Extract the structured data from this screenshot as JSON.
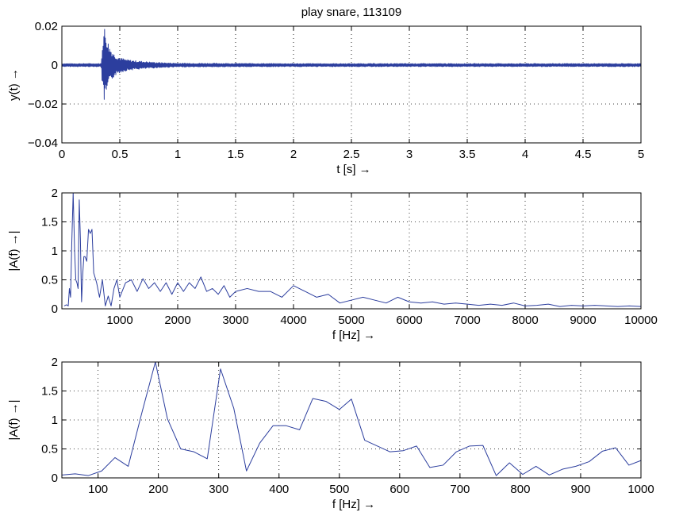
{
  "title": "play snare, 113109",
  "chart_data": [
    {
      "type": "line",
      "xlabel": "t [s] →",
      "ylabel": "y(t) →",
      "xlim": [
        0,
        5
      ],
      "ylim": [
        -0.04,
        0.02
      ],
      "xticks": [
        "0",
        "0.5",
        "1",
        "1.5",
        "2",
        "2.5",
        "3",
        "3.5",
        "4",
        "4.5",
        "5"
      ],
      "yticks": [
        "0.02",
        "0",
        "−0.02",
        "−0.04"
      ],
      "grid": true,
      "color": "#2c3e9e",
      "series": [
        {
          "x": [
            0,
            0.34,
            0.35,
            0.355,
            0.36,
            0.365,
            0.37,
            0.375,
            0.38,
            0.385,
            0.39,
            0.395,
            0.4,
            0.41,
            0.42,
            0.43,
            0.44,
            0.45,
            0.47,
            0.5,
            0.55,
            0.6,
            0.7,
            0.8,
            0.9,
            1.0,
            1.5,
            2,
            2.5,
            3,
            3.5,
            4,
            4.5,
            5
          ],
          "envelope": [
            0.0008,
            0.0008,
            0.012,
            0.016,
            0.018,
            0.019,
            0.02,
            0.018,
            0.017,
            0.016,
            0.015,
            0.013,
            0.012,
            0.01,
            0.009,
            0.008,
            0.007,
            0.006,
            0.005,
            0.004,
            0.003,
            0.0025,
            0.002,
            0.0015,
            0.0012,
            0.001,
            0.0009,
            0.0008,
            0.0008,
            0.0008,
            0.0008,
            0.0008,
            0.0008,
            0.0008
          ],
          "min_value": -0.024,
          "max_value": 0.02
        }
      ]
    },
    {
      "type": "line",
      "xlabel": "f [Hz] →",
      "ylabel": "|A(f) →|",
      "xlim": [
        0,
        10000
      ],
      "ylim": [
        0,
        2
      ],
      "xticks": [
        "1000",
        "2000",
        "3000",
        "4000",
        "5000",
        "6000",
        "7000",
        "8000",
        "9000",
        "10000"
      ],
      "yticks": [
        "2",
        "1.5",
        "1",
        "0.5",
        "0"
      ],
      "grid": true,
      "color": "#2c3e9e",
      "series": [
        {
          "x": [
            40,
            80,
            110,
            130,
            150,
            170,
            195,
            220,
            240,
            260,
            280,
            300,
            320,
            340,
            360,
            380,
            400,
            430,
            460,
            490,
            520,
            550,
            600,
            650,
            700,
            750,
            800,
            850,
            900,
            950,
            1000,
            1100,
            1200,
            1300,
            1400,
            1500,
            1600,
            1700,
            1800,
            1900,
            2000,
            2100,
            2200,
            2300,
            2400,
            2500,
            2600,
            2700,
            2800,
            2900,
            3000,
            3200,
            3400,
            3600,
            3800,
            4000,
            4200,
            4400,
            4600,
            4800,
            5000,
            5200,
            5400,
            5600,
            5800,
            6000,
            6200,
            6400,
            6600,
            6800,
            7000,
            7200,
            7400,
            7600,
            7800,
            8000,
            8200,
            8400,
            8600,
            8800,
            9000,
            9200,
            9400,
            9600,
            9800,
            10000
          ],
          "y": [
            0.05,
            0.07,
            0.05,
            0.35,
            0.2,
            1.1,
            2.0,
            1.0,
            0.5,
            0.45,
            0.35,
            1.88,
            1.2,
            0.12,
            0.6,
            0.9,
            0.9,
            0.82,
            1.37,
            1.3,
            1.37,
            0.62,
            0.45,
            0.2,
            0.5,
            0.05,
            0.22,
            0.05,
            0.35,
            0.5,
            0.2,
            0.45,
            0.5,
            0.3,
            0.52,
            0.35,
            0.45,
            0.3,
            0.45,
            0.25,
            0.45,
            0.3,
            0.45,
            0.35,
            0.55,
            0.3,
            0.35,
            0.25,
            0.4,
            0.2,
            0.3,
            0.35,
            0.3,
            0.3,
            0.2,
            0.4,
            0.3,
            0.2,
            0.25,
            0.1,
            0.15,
            0.2,
            0.15,
            0.1,
            0.2,
            0.12,
            0.1,
            0.12,
            0.08,
            0.1,
            0.08,
            0.06,
            0.08,
            0.06,
            0.1,
            0.05,
            0.06,
            0.08,
            0.04,
            0.06,
            0.05,
            0.06,
            0.05,
            0.04,
            0.05,
            0.04
          ]
        }
      ]
    },
    {
      "type": "line",
      "xlabel": "f [Hz] →",
      "ylabel": "|A(f) →|",
      "xlim": [
        40,
        1000
      ],
      "ylim": [
        0,
        2
      ],
      "xticks": [
        "100",
        "200",
        "300",
        "400",
        "500",
        "600",
        "700",
        "800",
        "900",
        "1000"
      ],
      "yticks": [
        "2",
        "1.5",
        "1",
        "0.5",
        "0"
      ],
      "grid": true,
      "color": "#2c3e9e",
      "series": [
        {
          "x": [
            40,
            62,
            84,
            106,
            128,
            150,
            172,
            195,
            215,
            237,
            259,
            281,
            303,
            325,
            346,
            368,
            390,
            412,
            434,
            456,
            478,
            500,
            520,
            542,
            584,
            606,
            628,
            650,
            672,
            694,
            716,
            738,
            760,
            782,
            804,
            826,
            848,
            870,
            892,
            914,
            936,
            958,
            980,
            1000
          ],
          "y": [
            0.05,
            0.07,
            0.04,
            0.12,
            0.35,
            0.2,
            1.1,
            2.0,
            1.02,
            0.5,
            0.45,
            0.33,
            1.88,
            1.2,
            0.12,
            0.6,
            0.9,
            0.9,
            0.83,
            1.37,
            1.32,
            1.18,
            1.36,
            0.65,
            0.45,
            0.47,
            0.55,
            0.18,
            0.22,
            0.45,
            0.55,
            0.56,
            0.04,
            0.26,
            0.06,
            0.2,
            0.05,
            0.15,
            0.2,
            0.28,
            0.46,
            0.52,
            0.22,
            0.3
          ]
        }
      ]
    }
  ]
}
